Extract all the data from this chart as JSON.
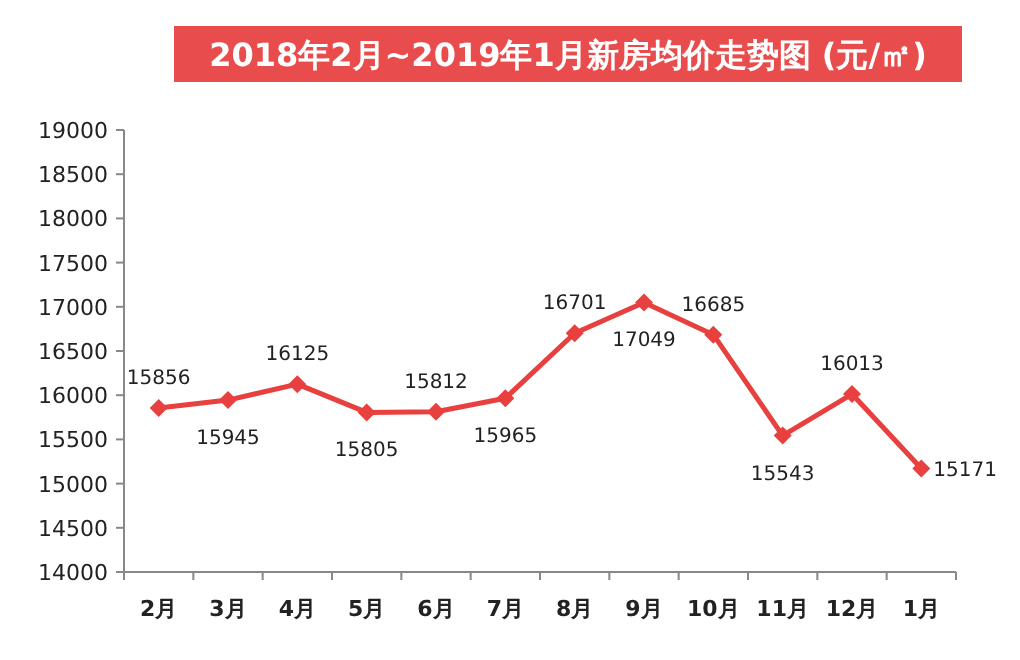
{
  "chart_data": {
    "type": "line",
    "title": "2018年2月~2019年1月新房均价走势图 (元/㎡)",
    "categories": [
      "2月",
      "3月",
      "4月",
      "5月",
      "6月",
      "7月",
      "8月",
      "9月",
      "10月",
      "11月",
      "12月",
      "1月"
    ],
    "series": [
      {
        "color": "#e8403f",
        "values": [
          15856,
          15945,
          16125,
          15805,
          15812,
          15965,
          16701,
          17049,
          16685,
          15543,
          16013,
          15171
        ]
      }
    ],
    "ylim": [
      14000,
      19000
    ],
    "yticks": [
      14000,
      14500,
      15000,
      15500,
      16000,
      16500,
      17000,
      17500,
      18000,
      18500,
      19000
    ],
    "marker": "diamond",
    "line_style": "solid",
    "data_labels": true
  }
}
